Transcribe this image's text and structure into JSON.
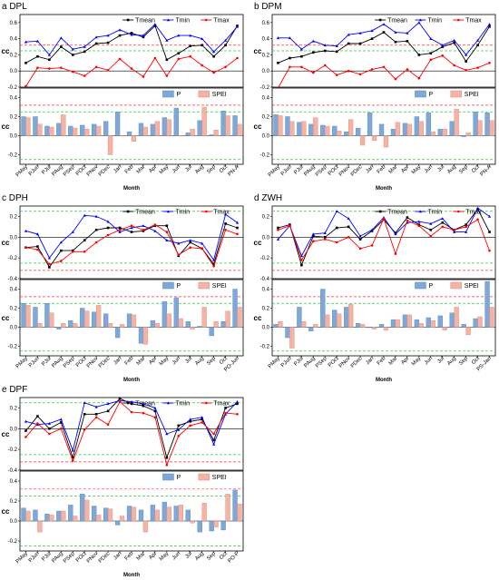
{
  "chart_data": [
    {
      "title": "a DPL",
      "type": "line",
      "x_tick_labels": [
        "PMay",
        "PJun",
        "PJul",
        "PAug",
        "PSep",
        "POct",
        "PNov",
        "PDec",
        "Jan",
        "Feb",
        "Mar",
        "Apr",
        "May",
        "Jun",
        "Jul",
        "Aug",
        "Sep",
        "Oct",
        "PN-A"
      ],
      "xlabel": "Month",
      "top": {
        "ylabel": "cc",
        "ylim": [
          -0.2,
          0.7
        ],
        "yticks": [
          -0.2,
          0.0,
          0.2,
          0.4,
          0.6
        ],
        "thresholds": [
          0.25,
          0.32
        ],
        "series": [
          {
            "name": "Tmean",
            "color": "#000000",
            "values": [
              0.1,
              0.18,
              0.14,
              0.3,
              0.2,
              0.24,
              0.34,
              0.35,
              0.44,
              0.47,
              0.42,
              0.56,
              0.14,
              0.22,
              0.31,
              0.32,
              0.18,
              0.32,
              0.56
            ]
          },
          {
            "name": "Tmin",
            "color": "#0000ff",
            "values": [
              0.36,
              0.37,
              0.2,
              0.41,
              0.27,
              0.3,
              0.42,
              0.44,
              0.51,
              0.45,
              0.44,
              0.58,
              0.38,
              0.44,
              0.44,
              0.4,
              0.24,
              0.38,
              0.55
            ]
          },
          {
            "name": "Tmax",
            "color": "#ff0000",
            "values": [
              -0.19,
              0.04,
              0.03,
              0.04,
              -0.01,
              -0.06,
              0.05,
              0.01,
              0.15,
              0.03,
              -0.07,
              0.16,
              -0.06,
              0.15,
              0.18,
              0.07,
              -0.02,
              0.05,
              0.16
            ]
          }
        ]
      },
      "bottom": {
        "ylabel": "cc",
        "ylim": [
          -0.3,
          0.5
        ],
        "yticks": [
          -0.2,
          0.0,
          0.2,
          0.4
        ],
        "thresholds": [
          0.25,
          0.32
        ],
        "series": [
          {
            "name": "P",
            "color": "#7ea8d8",
            "values": [
              0.2,
              0.2,
              0.1,
              0.13,
              0.1,
              0.11,
              0.12,
              0.15,
              0.25,
              0.04,
              0.13,
              0.12,
              0.19,
              0.29,
              0.03,
              0.16,
              0.01,
              0.26,
              0.21
            ]
          },
          {
            "name": "SPEI",
            "color": "#f4b3a4",
            "values": [
              0.19,
              0.12,
              0.09,
              0.22,
              0.08,
              0.07,
              0.1,
              -0.2,
              0.0,
              -0.06,
              0.09,
              0.15,
              0.17,
              0.0,
              0.07,
              0.3,
              0.06,
              0.21,
              0.12
            ]
          }
        ]
      }
    },
    {
      "title": "b DPM",
      "type": "line",
      "x_tick_labels": [
        "PMay",
        "PJun",
        "PJul",
        "PAug",
        "PSep",
        "POct",
        "PNov",
        "PDec",
        "Jan",
        "Feb",
        "Mar",
        "Apr",
        "May",
        "Jun",
        "Jul",
        "Aug",
        "Sep",
        "Oct",
        "PN-A"
      ],
      "xlabel": "Month",
      "top": {
        "ylabel": "cc",
        "ylim": [
          -0.2,
          0.7
        ],
        "yticks": [
          -0.2,
          0.0,
          0.2,
          0.4,
          0.6
        ],
        "thresholds": [
          0.25,
          0.32
        ],
        "series": [
          {
            "name": "Tmean",
            "color": "#000000",
            "values": [
              0.1,
              0.16,
              0.18,
              0.23,
              0.25,
              0.24,
              0.34,
              0.34,
              0.4,
              0.48,
              0.36,
              0.37,
              0.2,
              0.22,
              0.3,
              0.35,
              0.12,
              0.32,
              0.55
            ]
          },
          {
            "name": "Tmin",
            "color": "#0000ff",
            "values": [
              0.41,
              0.41,
              0.27,
              0.37,
              0.32,
              0.31,
              0.45,
              0.47,
              0.5,
              0.58,
              0.48,
              0.47,
              0.6,
              0.4,
              0.32,
              0.38,
              0.2,
              0.38,
              0.58
            ]
          },
          {
            "name": "Tmax",
            "color": "#ff0000",
            "values": [
              -0.21,
              0.05,
              0.05,
              -0.02,
              0.07,
              -0.05,
              0.0,
              -0.04,
              0.02,
              0.05,
              -0.1,
              0.02,
              -0.09,
              0.14,
              0.19,
              0.07,
              0.01,
              0.04,
              0.1
            ]
          }
        ]
      },
      "bottom": {
        "ylabel": "cc",
        "ylim": [
          -0.3,
          0.5
        ],
        "yticks": [
          -0.2,
          0.0,
          0.2,
          0.4
        ],
        "thresholds": [
          0.25,
          0.32
        ],
        "series": [
          {
            "name": "P",
            "color": "#7ea8d8",
            "values": [
              0.22,
              0.2,
              0.14,
              0.12,
              0.11,
              0.1,
              0.04,
              0.08,
              0.24,
              0.12,
              0.07,
              0.13,
              0.2,
              0.24,
              0.07,
              0.15,
              -0.01,
              0.25,
              0.24
            ]
          },
          {
            "name": "SPEI",
            "color": "#f4b3a4",
            "values": [
              0.21,
              0.15,
              0.15,
              0.19,
              0.1,
              0.05,
              0.17,
              -0.1,
              -0.05,
              -0.12,
              0.14,
              0.12,
              0.15,
              0.04,
              0.07,
              0.28,
              0.03,
              0.16,
              0.16
            ]
          }
        ]
      }
    },
    {
      "title": "c DPH",
      "type": "line",
      "x_tick_labels": [
        "PMay",
        "PJun",
        "PJul",
        "PAug",
        "PSep",
        "POct",
        "PNov",
        "PDec",
        "Jan",
        "Feb",
        "Mar",
        "Apr",
        "May",
        "Jun",
        "Jul",
        "Aug",
        "Sep",
        "Oct",
        "PO-Jun"
      ],
      "xlabel": "Month",
      "top": {
        "ylabel": "cc",
        "ylim": [
          -0.4,
          0.3
        ],
        "yticks": [
          -0.4,
          -0.2,
          0.0,
          0.2
        ],
        "thresholds": [
          0.25,
          0.32
        ],
        "series": [
          {
            "name": "Tmean",
            "color": "#000000",
            "values": [
              -0.1,
              -0.09,
              -0.29,
              -0.13,
              -0.13,
              -0.03,
              0.07,
              0.09,
              0.09,
              0.05,
              0.06,
              0.11,
              0.11,
              -0.18,
              -0.05,
              -0.11,
              -0.26,
              0.13,
              0.09
            ]
          },
          {
            "name": "Tmin",
            "color": "#0000ff",
            "values": [
              0.06,
              0.03,
              -0.2,
              -0.05,
              0.05,
              0.21,
              0.2,
              0.15,
              0.05,
              0.09,
              0.11,
              0.06,
              -0.03,
              -0.06,
              -0.03,
              -0.06,
              -0.22,
              0.22,
              0.14
            ]
          },
          {
            "name": "Tmax",
            "color": "#ff0000",
            "values": [
              -0.1,
              -0.12,
              -0.26,
              -0.23,
              -0.14,
              -0.14,
              -0.05,
              0.02,
              0.07,
              0.11,
              0.07,
              0.12,
              0.05,
              -0.17,
              -0.1,
              -0.11,
              -0.28,
              0.07,
              0.03
            ]
          }
        ]
      },
      "bottom": {
        "ylabel": "cc",
        "ylim": [
          -0.3,
          0.5
        ],
        "yticks": [
          -0.2,
          0.0,
          0.2,
          0.4
        ],
        "thresholds": [
          0.25,
          0.32
        ],
        "series": [
          {
            "name": "P",
            "color": "#7ea8d8",
            "values": [
              0.25,
              0.21,
              0.25,
              -0.02,
              0.07,
              0.2,
              0.16,
              0.14,
              -0.11,
              0.14,
              -0.17,
              0.07,
              0.27,
              0.31,
              0.06,
              0.01,
              -0.09,
              0.06,
              0.4
            ]
          },
          {
            "name": "SPEI",
            "color": "#f4b3a4",
            "values": [
              0.23,
              0.04,
              0.15,
              0.04,
              0.04,
              0.17,
              0.23,
              0.04,
              0.03,
              0.13,
              -0.18,
              0.04,
              0.14,
              0.09,
              -0.02,
              0.21,
              0.06,
              0.17,
              0.21
            ]
          }
        ]
      }
    },
    {
      "title": "d ZWH",
      "type": "line",
      "x_tick_labels": [
        "PMay",
        "PJun",
        "PJul",
        "PAug",
        "PSep",
        "POct",
        "PNov",
        "PDec",
        "Jan",
        "Feb",
        "Mar",
        "Apr",
        "May",
        "Jun",
        "Jul",
        "Aug",
        "Sep",
        "Oct",
        "PS-Jan"
      ],
      "xlabel": "Month",
      "top": {
        "ylabel": "cc",
        "ylim": [
          -0.4,
          0.3
        ],
        "yticks": [
          -0.4,
          -0.2,
          0.0,
          0.2
        ],
        "thresholds": [
          0.25,
          0.32
        ],
        "series": [
          {
            "name": "Tmean",
            "color": "#000000",
            "values": [
              0.09,
              0.12,
              -0.27,
              0.01,
              0.0,
              0.09,
              0.1,
              -0.02,
              0.06,
              0.17,
              0.04,
              0.19,
              0.12,
              0.07,
              0.14,
              0.07,
              0.12,
              0.27,
              0.05
            ]
          },
          {
            "name": "Tmin",
            "color": "#0000ff",
            "values": [
              -0.02,
              0.11,
              -0.18,
              0.03,
              0.04,
              0.25,
              0.18,
              0.01,
              0.07,
              0.19,
              0.03,
              0.14,
              0.15,
              0.13,
              0.18,
              0.05,
              0.05,
              0.28,
              0.2
            ]
          },
          {
            "name": "Tmax",
            "color": "#ff0000",
            "values": [
              0.07,
              0.11,
              -0.22,
              -0.04,
              -0.02,
              -0.05,
              0.0,
              -0.11,
              -0.08,
              0.18,
              -0.16,
              0.16,
              0.11,
              0.01,
              0.1,
              0.07,
              0.1,
              0.17,
              -0.13
            ]
          }
        ]
      },
      "bottom": {
        "ylabel": "cc",
        "ylim": [
          -0.3,
          0.5
        ],
        "yticks": [
          -0.2,
          0.0,
          0.2,
          0.4
        ],
        "thresholds": [
          0.25,
          0.32
        ],
        "series": [
          {
            "name": "P",
            "color": "#7ea8d8",
            "values": [
              0.03,
              -0.11,
              0.21,
              -0.04,
              0.4,
              0.18,
              0.21,
              0.04,
              0.0,
              0.03,
              0.08,
              0.13,
              0.08,
              0.1,
              0.12,
              0.15,
              0.03,
              0.09,
              0.48
            ]
          },
          {
            "name": "SPEI",
            "color": "#f4b3a4",
            "values": [
              0.06,
              -0.22,
              0.06,
              0.03,
              0.13,
              0.14,
              0.24,
              0.03,
              -0.02,
              -0.03,
              0.08,
              0.13,
              0.04,
              0.07,
              -0.03,
              0.21,
              -0.08,
              0.11,
              0.21
            ]
          }
        ]
      }
    },
    {
      "title": "e DPF",
      "type": "line",
      "x_tick_labels": [
        "PMay",
        "PJun",
        "PJul",
        "PAug",
        "PSep",
        "POct",
        "PNov",
        "PDec",
        "Jan",
        "Feb",
        "Mar",
        "Apr",
        "May",
        "Jun",
        "Jul",
        "Aug",
        "Sep",
        "Oct",
        "PO-F"
      ],
      "xlabel": "Month",
      "top": {
        "ylabel": "cc",
        "ylim": [
          -0.4,
          0.3
        ],
        "yticks": [
          -0.4,
          -0.2,
          0.0,
          0.2
        ],
        "thresholds": [
          0.25,
          0.32
        ],
        "series": [
          {
            "name": "Tmean",
            "color": "#000000",
            "values": [
              -0.02,
              0.12,
              0.0,
              0.06,
              -0.28,
              0.14,
              0.14,
              0.17,
              0.29,
              0.24,
              0.22,
              0.17,
              -0.28,
              0.03,
              0.07,
              0.09,
              -0.11,
              0.2,
              0.24
            ]
          },
          {
            "name": "Tmin",
            "color": "#0000ff",
            "values": [
              0.07,
              0.04,
              0.05,
              0.09,
              -0.21,
              0.25,
              0.21,
              0.24,
              0.27,
              0.26,
              0.24,
              0.2,
              -0.05,
              -0.01,
              0.09,
              0.11,
              -0.15,
              0.14,
              0.26
            ]
          },
          {
            "name": "Tmax",
            "color": "#ff0000",
            "values": [
              -0.08,
              0.05,
              -0.05,
              0.0,
              -0.31,
              -0.01,
              0.11,
              0.04,
              0.26,
              0.16,
              0.15,
              0.11,
              -0.35,
              -0.07,
              0.03,
              0.06,
              -0.05,
              0.15,
              0.14
            ]
          }
        ]
      },
      "bottom": {
        "ylabel": "cc",
        "ylim": [
          -0.3,
          0.5
        ],
        "yticks": [
          -0.2,
          0.0,
          0.2,
          0.4
        ],
        "thresholds": [
          0.25,
          0.32
        ],
        "series": [
          {
            "name": "P",
            "color": "#7ea8d8",
            "values": [
              0.13,
              0.11,
              0.07,
              0.1,
              0.16,
              0.27,
              0.15,
              0.13,
              -0.04,
              0.15,
              0.11,
              0.16,
              0.19,
              0.15,
              0.11,
              -0.11,
              -0.1,
              -0.09,
              0.31
            ]
          },
          {
            "name": "SPEI",
            "color": "#f4b3a4",
            "values": [
              0.1,
              -0.11,
              0.06,
              0.1,
              0.05,
              0.21,
              0.06,
              0.12,
              0.05,
              0.14,
              -0.11,
              0.11,
              0.14,
              0.16,
              -0.02,
              0.18,
              -0.06,
              0.27,
              0.17
            ]
          }
        ]
      }
    }
  ]
}
